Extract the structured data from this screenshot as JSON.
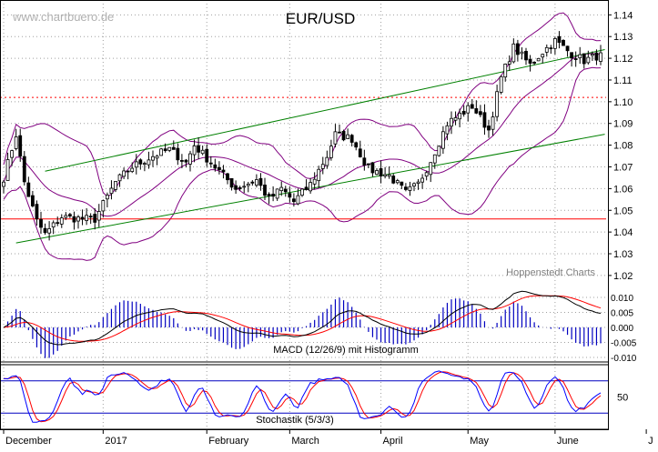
{
  "chart_data": {
    "type": "candlestick",
    "title": "EUR/USD",
    "watermark": "www.chartbuero.de",
    "credit": "Hoppenstedt Charts",
    "colors": {
      "background": "#ffffff",
      "grid": "#a0a0a0",
      "candle": "#000000",
      "bollinger": "#800080",
      "trend_channel": "#008000",
      "levels": "#ff0000",
      "macd_line": "#000000",
      "macd_signal": "#ff0000",
      "histogram": "#0000c0",
      "stoch_k": "#0000ff",
      "stoch_d": "#ff0000",
      "stoch_bands": "#0000c0"
    },
    "x_axis": {
      "labels": [
        "December",
        "2017",
        "February",
        "March",
        "April",
        "May",
        "June",
        "J"
      ],
      "label_index": [
        0,
        24,
        49,
        69,
        91,
        112,
        133,
        155
      ],
      "num_days": 145
    },
    "price_panel": {
      "ylim": [
        1.012,
        1.146
      ],
      "ticks": [
        "1.14",
        "1.13",
        "1.12",
        "1.11",
        "1.10",
        "1.09",
        "1.08",
        "1.07",
        "1.06",
        "1.05",
        "1.04",
        "1.03",
        "1.02"
      ],
      "tick_values": [
        1.14,
        1.13,
        1.12,
        1.11,
        1.1,
        1.09,
        1.08,
        1.07,
        1.06,
        1.05,
        1.04,
        1.03,
        1.02
      ],
      "anchors": {
        "index": [
          0,
          3,
          5,
          8,
          10,
          14,
          19,
          22,
          27,
          31,
          36,
          40,
          44,
          46,
          51,
          56,
          61,
          64,
          67,
          70,
          74,
          78,
          80,
          84,
          88,
          93,
          97,
          100,
          103,
          107,
          110,
          113,
          117,
          120,
          123,
          127,
          130,
          133,
          137,
          140,
          143
        ],
        "close": [
          1.065,
          1.085,
          1.063,
          1.045,
          1.039,
          1.047,
          1.046,
          1.046,
          1.063,
          1.07,
          1.075,
          1.078,
          1.072,
          1.08,
          1.07,
          1.06,
          1.064,
          1.055,
          1.06,
          1.054,
          1.062,
          1.075,
          1.085,
          1.083,
          1.069,
          1.066,
          1.058,
          1.062,
          1.073,
          1.09,
          1.094,
          1.098,
          1.087,
          1.111,
          1.125,
          1.117,
          1.123,
          1.128,
          1.122,
          1.119,
          1.121
        ]
      },
      "support_line": 1.046,
      "resistance_line": 1.102,
      "channel_upper": [
        [
          10,
          1.068
        ],
        [
          145,
          1.124
        ]
      ],
      "channel_lower": [
        [
          3,
          1.035
        ],
        [
          145,
          1.085
        ]
      ]
    },
    "macd_panel": {
      "title": "MACD (12/26/9) mit Histogramm",
      "ylim": [
        -0.0115,
        0.0115
      ],
      "ticks": [
        "0.010",
        "0.005",
        "0.000",
        "-0.005",
        "-0.010"
      ],
      "tick_values": [
        0.01,
        0.005,
        0.0,
        -0.005,
        -0.01
      ]
    },
    "stoch_panel": {
      "title": "Stochastik (5/3/3)",
      "ylim": [
        0,
        100
      ],
      "ticks": [
        "50"
      ],
      "tick_values": [
        50
      ],
      "bands": [
        20,
        80
      ]
    }
  }
}
